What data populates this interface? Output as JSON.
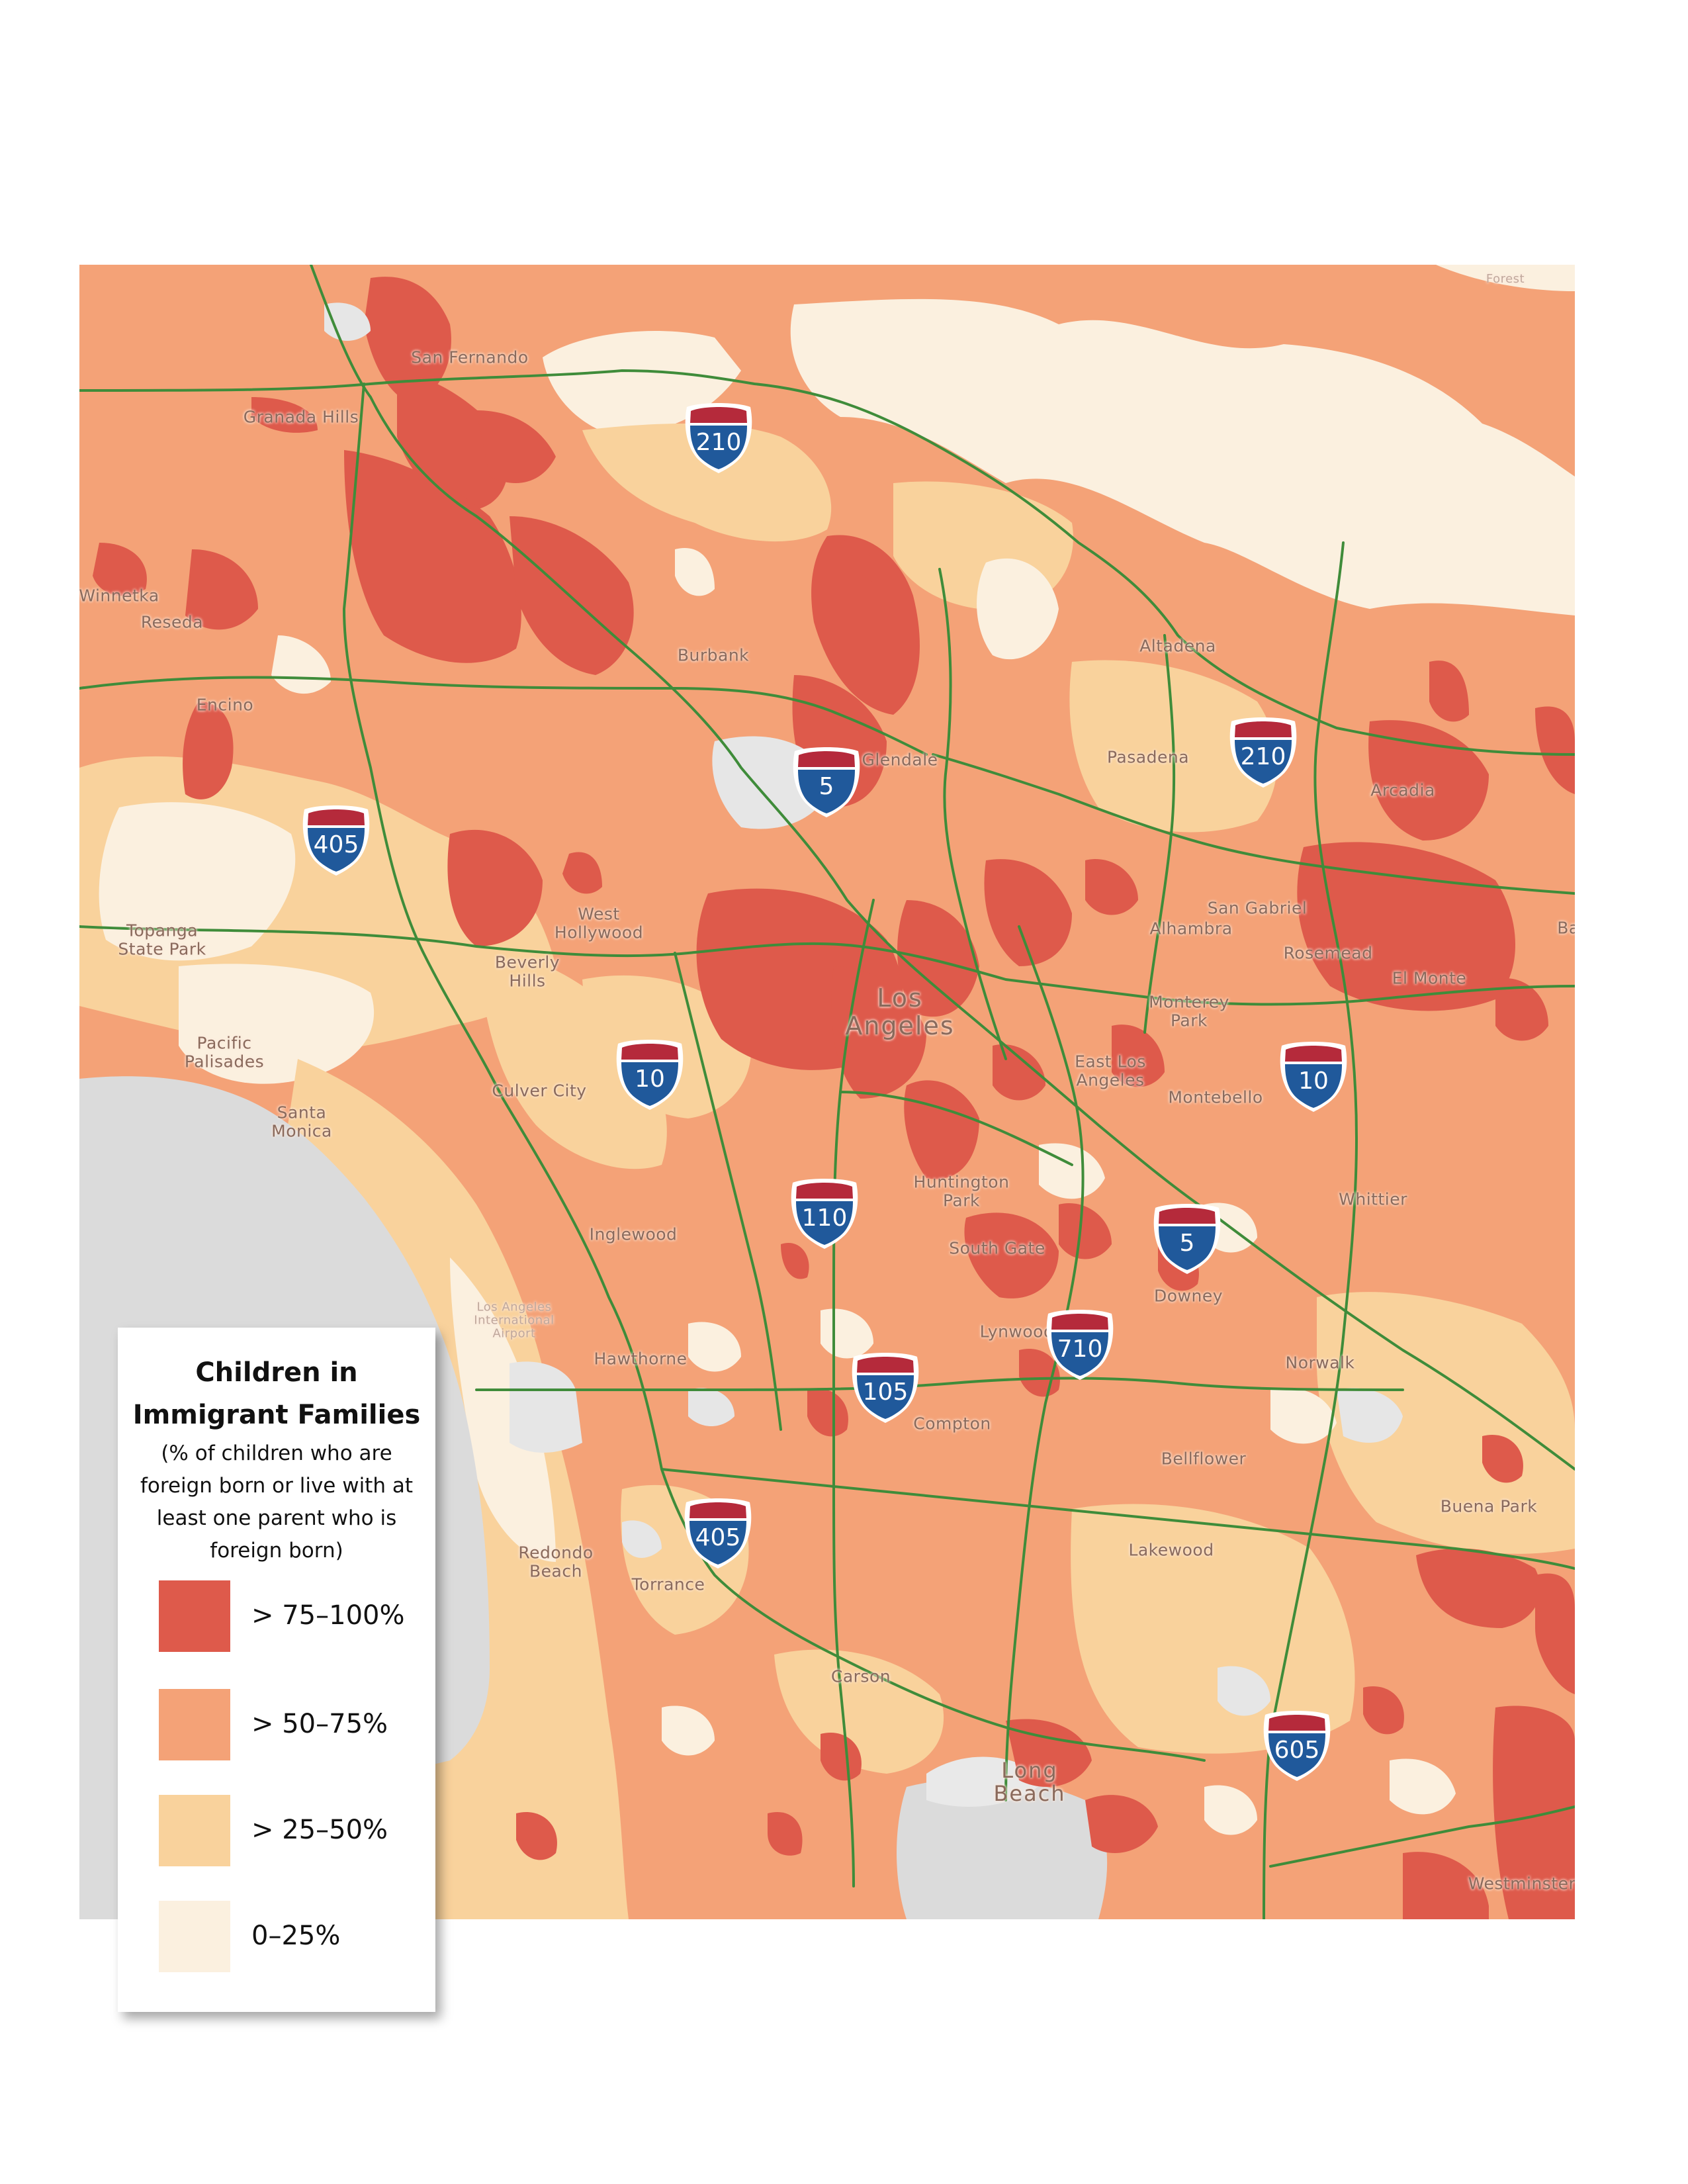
{
  "colors": {
    "cat_75_100": "#de5a4b",
    "cat_50_75": "#f4a277",
    "cat_25_50": "#f9d29c",
    "cat_0_25": "#fbf0df",
    "ocean": "#dbdbdb",
    "freeway": "#3f8c3a",
    "shield_red": "#b52a3b",
    "shield_blue": "#20599b"
  },
  "legend": {
    "title": "Children in Immigrant Families",
    "subtitle": "(% of children who are foreign born or live with at least one parent who is foreign born)",
    "items": [
      {
        "label": "> 75–100%",
        "color": "#de5a4b"
      },
      {
        "label": "> 50–75%",
        "color": "#f4a277"
      },
      {
        "label": "> 25–50%",
        "color": "#f9d29c"
      },
      {
        "label": "0–25%",
        "color": "#fbf0df"
      }
    ]
  },
  "places": [
    {
      "name": "San Fernando"
    },
    {
      "name": "Granada Hills"
    },
    {
      "name": "Winnetka"
    },
    {
      "name": "Reseda"
    },
    {
      "name": "Encino"
    },
    {
      "name": "Burbank"
    },
    {
      "name": "Glendale"
    },
    {
      "name": "Altadena"
    },
    {
      "name": "Pasadena"
    },
    {
      "name": "Arcadia"
    },
    {
      "name": "Topanga State Park"
    },
    {
      "name": "West Hollywood"
    },
    {
      "name": "Beverly Hills"
    },
    {
      "name": "Pacific Palisades"
    },
    {
      "name": "Los Angeles"
    },
    {
      "name": "San Gabriel"
    },
    {
      "name": "Alhambra"
    },
    {
      "name": "Rosemead"
    },
    {
      "name": "El Monte"
    },
    {
      "name": "Monterey Park"
    },
    {
      "name": "East Los Angeles"
    },
    {
      "name": "Montebello"
    },
    {
      "name": "Santa Monica"
    },
    {
      "name": "Culver City"
    },
    {
      "name": "Huntington Park"
    },
    {
      "name": "Whittier"
    },
    {
      "name": "South Gate"
    },
    {
      "name": "Inglewood"
    },
    {
      "name": "Los Angeles International Airport"
    },
    {
      "name": "Downey"
    },
    {
      "name": "Lynwood"
    },
    {
      "name": "Hawthorne"
    },
    {
      "name": "Norwalk"
    },
    {
      "name": "Compton"
    },
    {
      "name": "Bellflower"
    },
    {
      "name": "Buena Park"
    },
    {
      "name": "Lakewood"
    },
    {
      "name": "Redondo Beach"
    },
    {
      "name": "Torrance"
    },
    {
      "name": "Carson"
    },
    {
      "name": "Long Beach"
    },
    {
      "name": "Westminster"
    },
    {
      "name": "Forest"
    },
    {
      "name": "Ba"
    }
  ],
  "shields": [
    {
      "route": "210"
    },
    {
      "route": "5"
    },
    {
      "route": "210"
    },
    {
      "route": "405"
    },
    {
      "route": "10"
    },
    {
      "route": "10"
    },
    {
      "route": "110"
    },
    {
      "route": "5"
    },
    {
      "route": "710"
    },
    {
      "route": "105"
    },
    {
      "route": "405"
    },
    {
      "route": "605"
    }
  ]
}
